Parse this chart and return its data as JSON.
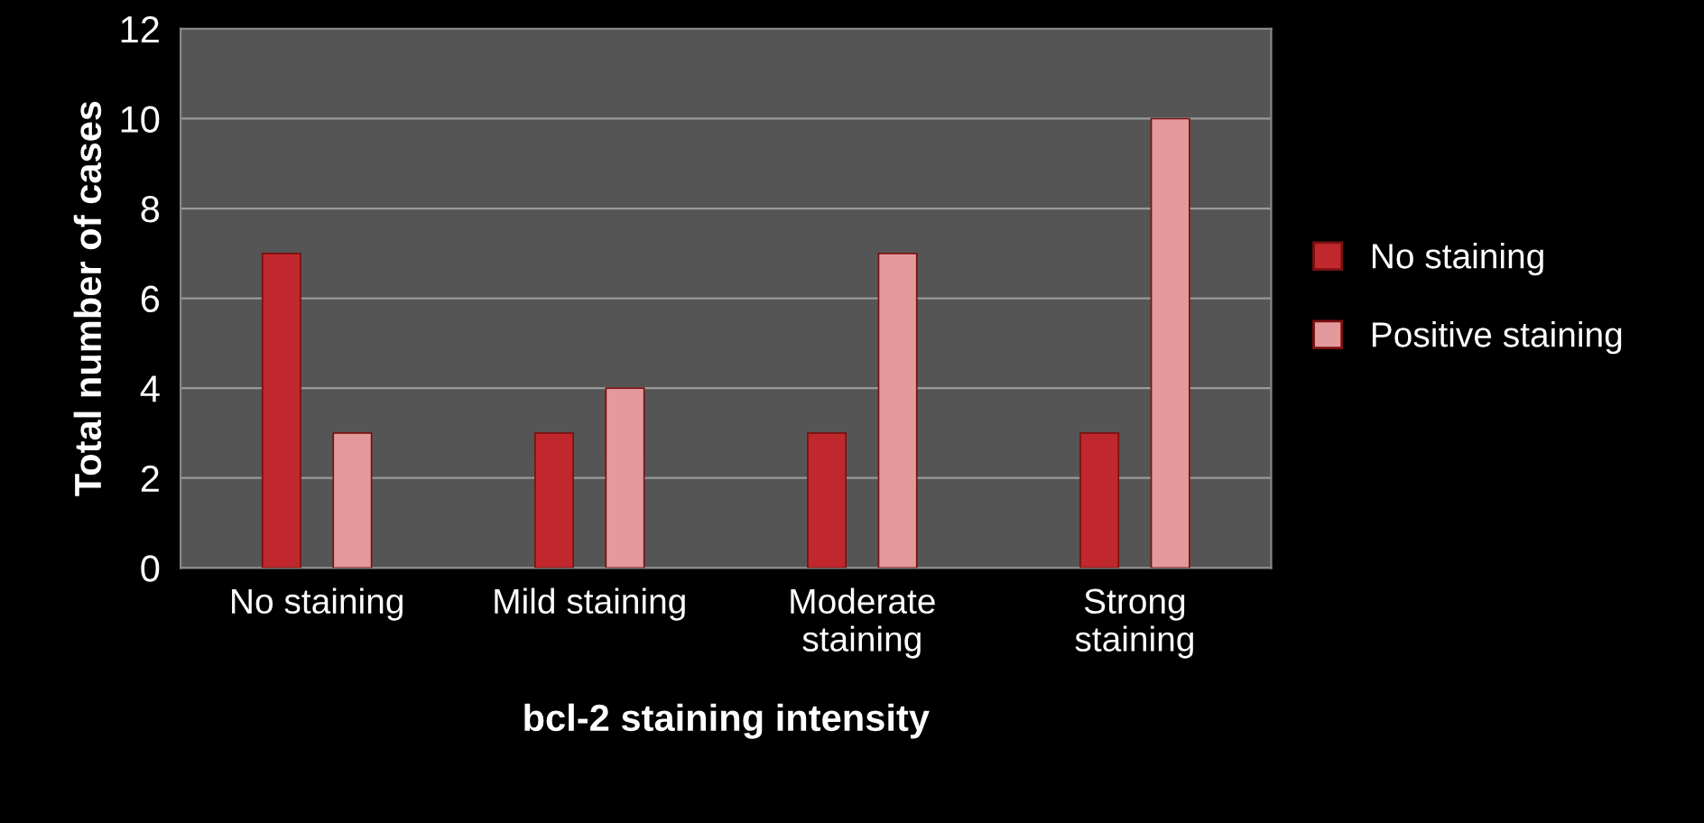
{
  "chart_data": {
    "type": "bar",
    "xlabel": "bcl-2 staining intensity",
    "ylabel": "Total number of cases",
    "categories": [
      "No staining",
      "Mild staining",
      "Moderate\nstaining",
      "Strong\nstaining"
    ],
    "series": [
      {
        "name": "No staining",
        "color": "#c0282d",
        "values": [
          7,
          3,
          3,
          3
        ]
      },
      {
        "name": "Positive staining",
        "color": "#e49a9c",
        "values": [
          3,
          4,
          7,
          10
        ]
      }
    ],
    "ylim": [
      0,
      12
    ],
    "yticks": [
      0,
      2,
      4,
      6,
      8,
      10,
      12
    ],
    "grid": "y",
    "legend": "right"
  }
}
